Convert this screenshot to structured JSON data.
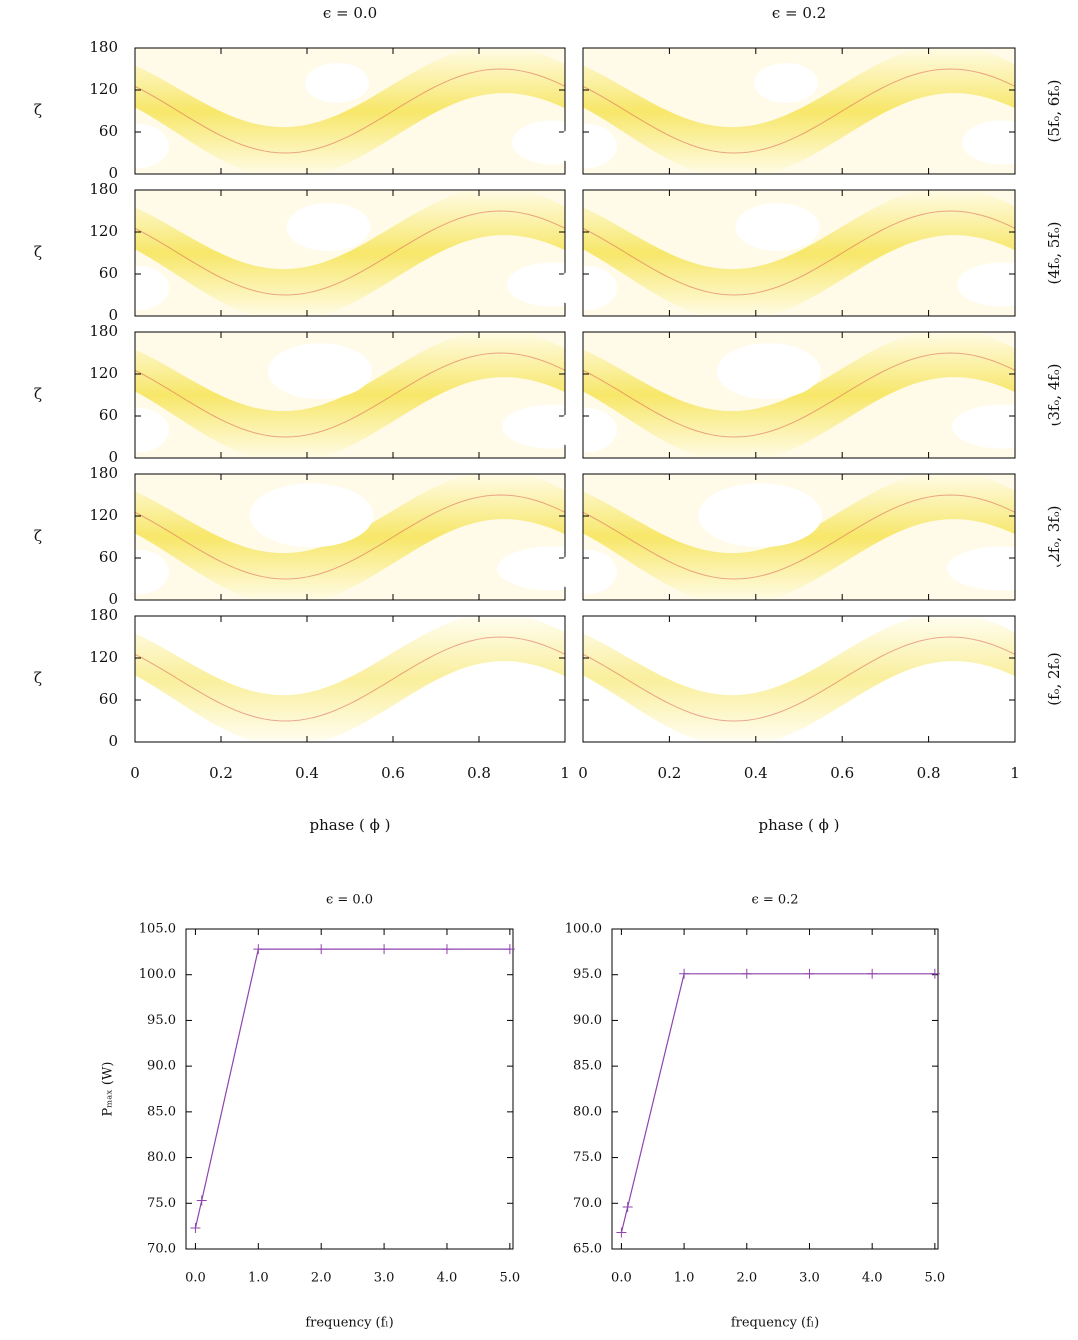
{
  "chart_data": [
    {
      "type": "heatmap-grid",
      "column_titles": [
        "ϵ = 0.0",
        "ϵ = 0.2"
      ],
      "row_labels": [
        "(5fₒ, 6fₒ)",
        "(4fₒ, 5fₒ)",
        "(3fₒ, 4fₒ)",
        "(2fₒ, 3fₒ)",
        "(fₒ, 2fₒ)"
      ],
      "ylabel": "ζ",
      "xlabel": "phase ( ϕ )",
      "xlim": [
        0,
        1
      ],
      "xticks": [
        0,
        0.2,
        0.4,
        0.6,
        0.8,
        1
      ],
      "ylim": [
        0,
        180
      ],
      "yticks": [
        0,
        60,
        120,
        180
      ]
    },
    {
      "type": "line",
      "title": "ϵ = 0.0",
      "xlabel": "frequency (fₗ)",
      "ylabel": "Pₘₐₓ (W)",
      "x": [
        0,
        0.1,
        1,
        2,
        3,
        4,
        5
      ],
      "series": [
        {
          "color": "#8e44ad",
          "values": [
            72.3,
            75.3,
            102.8,
            102.8,
            102.8,
            102.8,
            102.8
          ]
        }
      ],
      "xlim": [
        -0.15,
        5.05
      ],
      "xticks": [
        {
          "value": 0,
          "label": "0.0"
        },
        {
          "value": 1,
          "label": "1.0"
        },
        {
          "value": 2,
          "label": "2.0"
        },
        {
          "value": 3,
          "label": "3.0"
        },
        {
          "value": 4,
          "label": "4.0"
        },
        {
          "value": 5,
          "label": "5.0"
        }
      ],
      "ylim": [
        70,
        105
      ],
      "yticks": [
        {
          "value": 70,
          "label": "70.0"
        },
        {
          "value": 75,
          "label": "75.0"
        },
        {
          "value": 80,
          "label": "80.0"
        },
        {
          "value": 85,
          "label": "85.0"
        },
        {
          "value": 90,
          "label": "90.0"
        },
        {
          "value": 95,
          "label": "95.0"
        },
        {
          "value": 100,
          "label": "100.0"
        },
        {
          "value": 105,
          "label": "105.0"
        }
      ]
    },
    {
      "type": "line",
      "title": "ϵ = 0.2",
      "xlabel": "frequency (fₗ)",
      "x": [
        0,
        0.1,
        1,
        2,
        3,
        4,
        5
      ],
      "series": [
        {
          "color": "#8e44ad",
          "values": [
            66.8,
            69.6,
            95.1,
            95.1,
            95.1,
            95.1,
            95.1
          ]
        }
      ],
      "xlim": [
        -0.15,
        5.05
      ],
      "xticks": [
        {
          "value": 0,
          "label": "0.0"
        },
        {
          "value": 1,
          "label": "1.0"
        },
        {
          "value": 2,
          "label": "2.0"
        },
        {
          "value": 3,
          "label": "3.0"
        },
        {
          "value": 4,
          "label": "4.0"
        },
        {
          "value": 5,
          "label": "5.0"
        }
      ],
      "ylim": [
        65,
        100
      ],
      "yticks": [
        {
          "value": 65,
          "label": "65.0"
        },
        {
          "value": 70,
          "label": "70.0"
        },
        {
          "value": 75,
          "label": "75.0"
        },
        {
          "value": 80,
          "label": "80.0"
        },
        {
          "value": 85,
          "label": "85.0"
        },
        {
          "value": 90,
          "label": "90.0"
        },
        {
          "value": 95,
          "label": "95.0"
        },
        {
          "value": 100,
          "label": "100.0"
        }
      ]
    }
  ]
}
